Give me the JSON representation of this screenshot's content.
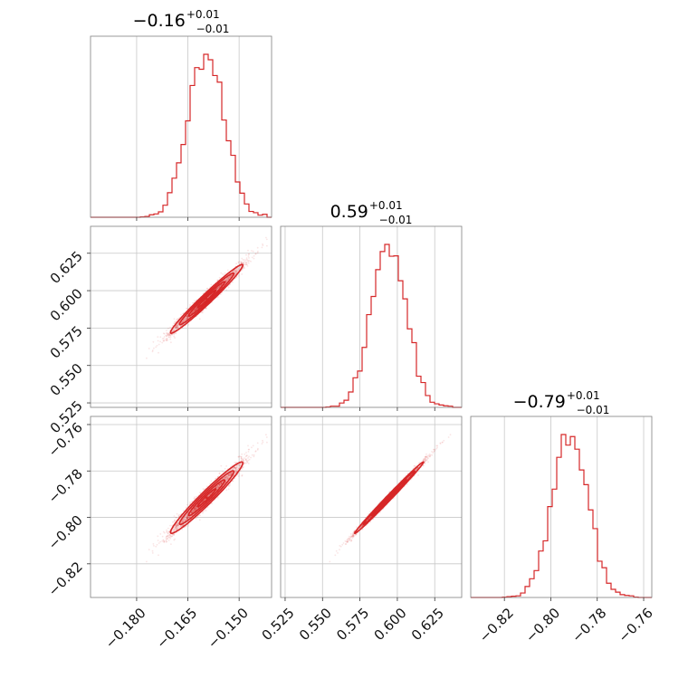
{
  "chart_data": {
    "type": "corner",
    "color": "#d62728",
    "grid": true,
    "parameters": [
      {
        "title_value": "−0.16",
        "title_upper": "+0.01",
        "title_lower": "−0.01",
        "range": [
          -0.1935,
          -0.1405
        ],
        "ticks": [
          -0.18,
          -0.165,
          -0.15
        ],
        "tick_labels": [
          "−0.180",
          "−0.165",
          "−0.150"
        ],
        "mean": -0.1595,
        "sigma": 0.0053
      },
      {
        "title_value": "0.59",
        "title_upper": "+0.01",
        "title_lower": "−0.01",
        "range": [
          0.522,
          0.643
        ],
        "ticks": [
          0.525,
          0.55,
          0.575,
          0.6,
          0.625
        ],
        "tick_labels": [
          "0.525",
          "0.550",
          "0.575",
          "0.600",
          "0.625"
        ],
        "mean": 0.5945,
        "sigma": 0.0115
      },
      {
        "title_value": "−0.79",
        "title_upper": "+0.01",
        "title_lower": "−0.01",
        "range": [
          -0.8345,
          -0.7565
        ],
        "ticks": [
          -0.82,
          -0.8,
          -0.78,
          -0.76
        ],
        "tick_labels": [
          "−0.82",
          "−0.80",
          "−0.78",
          "−0.76"
        ],
        "mean": -0.7915,
        "sigma": 0.0077
      }
    ],
    "correlations": [
      [
        1,
        0.98,
        0.97
      ],
      [
        0.98,
        1,
        0.995
      ],
      [
        0.97,
        0.995,
        1
      ]
    ]
  }
}
